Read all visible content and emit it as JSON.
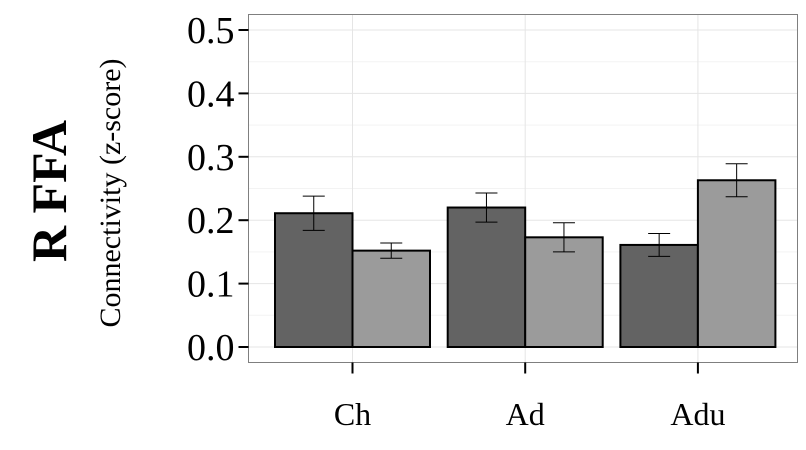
{
  "panel_title": "R FFA",
  "chart_data": {
    "type": "bar",
    "ylabel": "Connectivity (z-score)",
    "xlabel": "",
    "categories": [
      "Ch",
      "Ad",
      "Adu"
    ],
    "series": [
      {
        "color": "#636363",
        "values": [
          0.211,
          0.22,
          0.161
        ],
        "error": [
          0.027,
          0.023,
          0.018
        ]
      },
      {
        "color": "#9b9b9b",
        "values": [
          0.152,
          0.173,
          0.263
        ],
        "error": [
          0.012,
          0.023,
          0.026
        ]
      }
    ],
    "ylim": [
      -0.03,
      0.52
    ],
    "yticks": [
      0.0,
      0.1,
      0.2,
      0.3,
      0.4,
      0.5
    ],
    "ytick_labels": [
      "0.0",
      "0.1",
      "0.2",
      "0.3",
      "0.4",
      "0.5"
    ],
    "grid": true,
    "legend": "none"
  }
}
